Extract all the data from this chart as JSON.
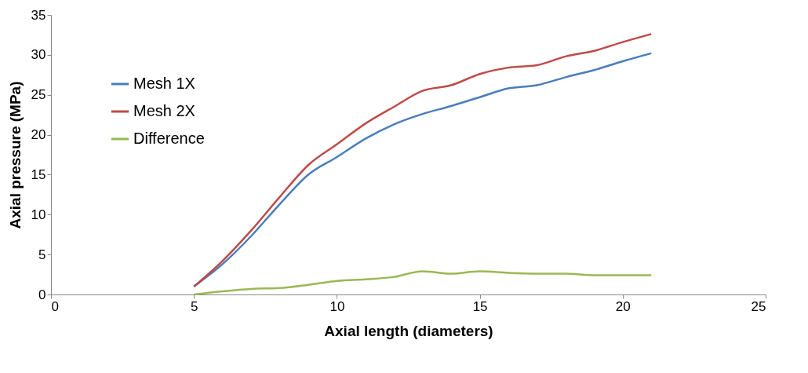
{
  "chart_data": {
    "type": "line",
    "xlabel": "Axial length (diameters)",
    "ylabel": "Axial pressure (MPa)",
    "x": [
      5,
      6,
      7,
      8,
      9,
      10,
      11,
      12,
      13,
      14,
      15,
      16,
      17,
      18,
      19,
      20,
      21
    ],
    "series": [
      {
        "name": "Mesh 1X",
        "color": "#4a7ebb",
        "values": [
          1.0,
          3.8,
          7.3,
          11.3,
          15.0,
          17.2,
          19.5,
          21.3,
          22.6,
          23.6,
          24.7,
          25.8,
          26.2,
          27.2,
          28.1,
          29.2,
          30.2
        ]
      },
      {
        "name": "Mesh 2X",
        "color": "#be4b48",
        "values": [
          1.0,
          4.2,
          8.0,
          12.2,
          16.2,
          18.8,
          21.4,
          23.5,
          25.5,
          26.2,
          27.6,
          28.4,
          28.7,
          29.8,
          30.5,
          31.6,
          32.6
        ]
      },
      {
        "name": "Difference",
        "color": "#98b954",
        "values": [
          0,
          0.4,
          0.7,
          0.8,
          1.2,
          1.7,
          1.9,
          2.2,
          2.9,
          2.6,
          2.9,
          2.7,
          2.6,
          2.6,
          2.4,
          2.4,
          2.4
        ]
      }
    ],
    "xlim": [
      0,
      25
    ],
    "xticks": [
      0,
      5,
      10,
      15,
      20,
      25
    ],
    "ylim": [
      0,
      35
    ],
    "yticks": [
      0,
      5,
      10,
      15,
      20,
      25,
      30,
      35
    ],
    "grid": false,
    "legend": "top left",
    "marker": "none",
    "line_style": "solid"
  }
}
